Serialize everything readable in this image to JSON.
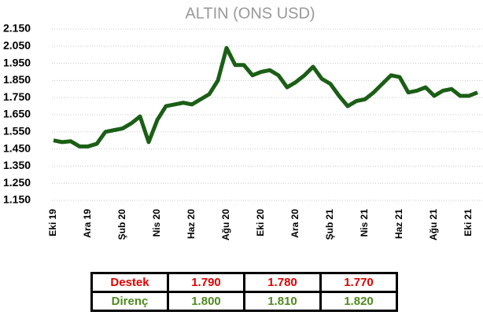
{
  "chart_data": {
    "type": "line",
    "title": "ALTIN (ONS USD)",
    "categories": [
      "Eki 19",
      null,
      null,
      null,
      "Ara 19",
      null,
      null,
      null,
      "Şub 20",
      null,
      null,
      null,
      "Nis 20",
      null,
      null,
      null,
      "Haz 20",
      null,
      null,
      null,
      "Ağu 20",
      null,
      null,
      null,
      "Eki 20",
      null,
      null,
      null,
      "Ara 20",
      null,
      null,
      null,
      "Şub 21",
      null,
      null,
      null,
      "Nis 21",
      null,
      null,
      null,
      "Haz 21",
      null,
      null,
      null,
      "Ağu 21",
      null,
      null,
      null,
      "Eki 21",
      null
    ],
    "values": [
      1500,
      1490,
      1495,
      1465,
      1465,
      1480,
      1550,
      1560,
      1570,
      1600,
      1640,
      1490,
      1620,
      1700,
      1710,
      1720,
      1710,
      1740,
      1770,
      1850,
      2040,
      1940,
      1940,
      1880,
      1900,
      1910,
      1880,
      1810,
      1840,
      1880,
      1930,
      1860,
      1830,
      1760,
      1700,
      1730,
      1740,
      1780,
      1830,
      1880,
      1870,
      1780,
      1790,
      1810,
      1760,
      1790,
      1800,
      1760,
      1760,
      1780
    ],
    "color": "#1b5e16",
    "ylim": [
      1150,
      2150
    ],
    "yticks": [
      {
        "value": 1150,
        "label": "1.150"
      },
      {
        "value": 1250,
        "label": "1.250"
      },
      {
        "value": 1350,
        "label": "1.350"
      },
      {
        "value": 1450,
        "label": "1.450"
      },
      {
        "value": 1550,
        "label": "1.550"
      },
      {
        "value": 1650,
        "label": "1.650"
      },
      {
        "value": 1750,
        "label": "1.750"
      },
      {
        "value": 1850,
        "label": "1.850"
      },
      {
        "value": 1950,
        "label": "1.950"
      },
      {
        "value": 2050,
        "label": "2.050"
      },
      {
        "value": 2150,
        "label": "2.150"
      }
    ],
    "grid": true
  },
  "table": {
    "rows": [
      [
        "Destek",
        "1.790",
        "1.780",
        "1.770"
      ],
      [
        "Direnç",
        "1.800",
        "1.810",
        "1.820"
      ]
    ]
  }
}
